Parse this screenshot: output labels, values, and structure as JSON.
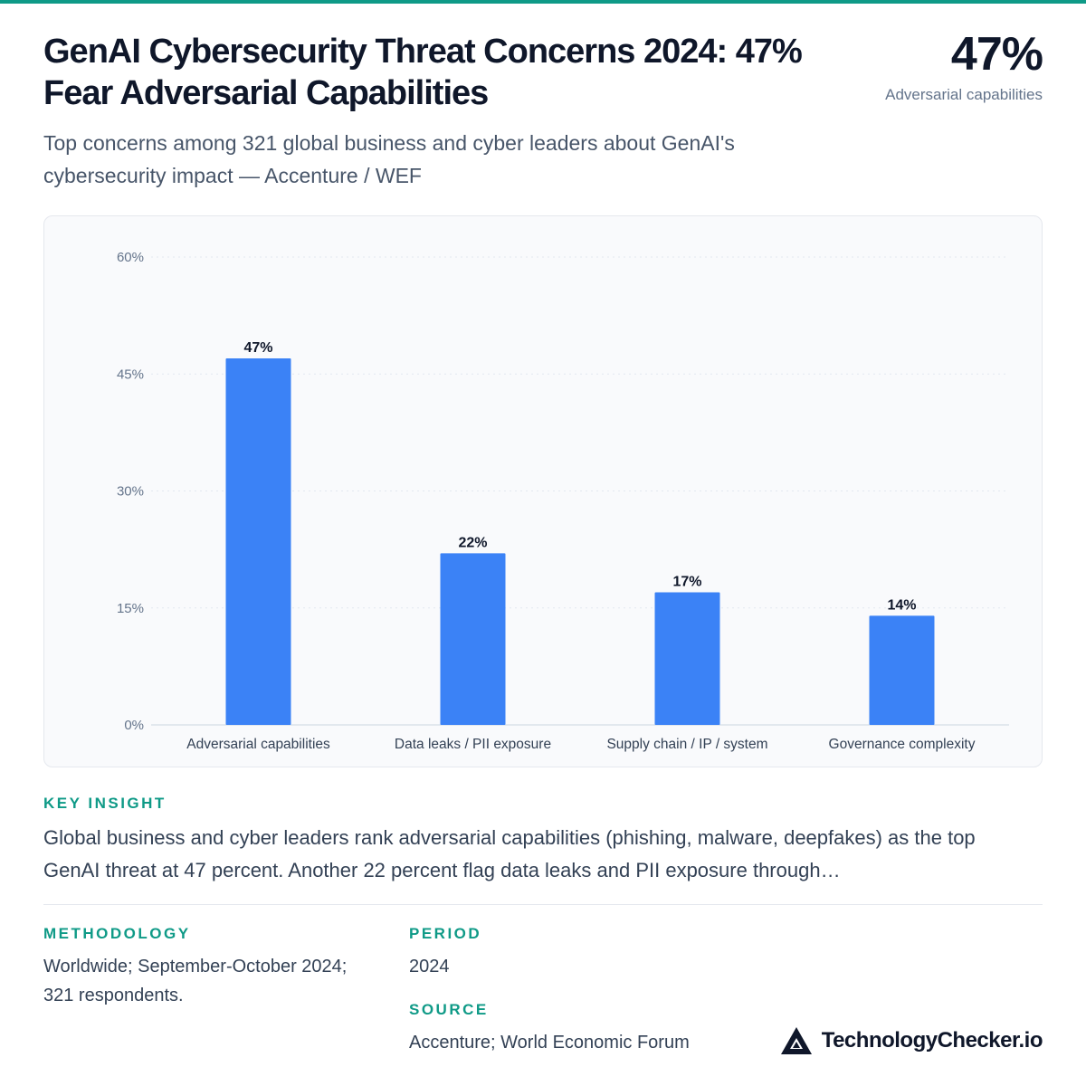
{
  "header": {
    "title": "GenAI Cybersecurity Threat Concerns 2024: 47% Fear Adversarial Capabilities",
    "subtitle": "Top concerns among 321 global business and cyber leaders about GenAI's cybersecurity impact — Accenture / WEF",
    "hero_value": "47%",
    "hero_label": "Adversarial capabilities"
  },
  "colors": {
    "accent": "#0f9a87",
    "bar": "#3b82f6",
    "text_dark": "#0f172a",
    "text_muted": "#64748b"
  },
  "chart_data": {
    "type": "bar",
    "categories": [
      "Adversarial capabilities",
      "Data leaks / PII exposure",
      "Supply chain / IP / system",
      "Governance complexity"
    ],
    "values": [
      47,
      22,
      17,
      14
    ],
    "value_labels": [
      "47%",
      "22%",
      "17%",
      "14%"
    ],
    "y_ticks": [
      0,
      15,
      30,
      45,
      60
    ],
    "y_tick_labels": [
      "0%",
      "15%",
      "30%",
      "45%",
      "60%"
    ],
    "ylim": [
      0,
      60
    ],
    "grid": true,
    "title": "",
    "xlabel": "",
    "ylabel": ""
  },
  "insight": {
    "label": "KEY INSIGHT",
    "text": "Global business and cyber leaders rank adversarial capabilities (phishing, malware, deepfakes) as the top GenAI threat at 47 percent. Another 22 percent flag data leaks and PII exposure through…"
  },
  "methodology": {
    "label": "METHODOLOGY",
    "text": "Worldwide; September-October 2024; 321 respondents."
  },
  "period": {
    "label": "PERIOD",
    "text": "2024"
  },
  "source": {
    "label": "SOURCE",
    "text": "Accenture; World Economic Forum"
  },
  "brand": {
    "name": "TechnologyChecker.io",
    "icon": "triangle-logo-icon"
  }
}
